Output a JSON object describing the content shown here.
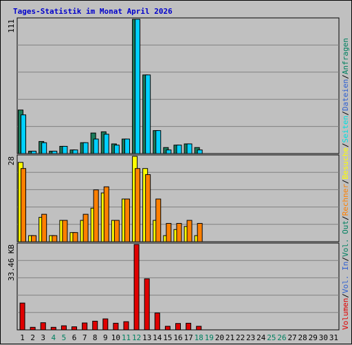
{
  "title": "Tages-Statistik im Monat April 2026",
  "colors": {
    "background": "#c0c0c0",
    "plot_bg": "#c0c0c0",
    "grid": "#808080",
    "title": "#0000cc",
    "anfragen": "#008060",
    "dateien": "#00d0ff",
    "seiten": "#00e0e0",
    "besuche": "#ffff00",
    "rechner": "#ff8000",
    "vol_out": "#008060",
    "vol_in": "#3060d0",
    "volumen": "#e00000",
    "weekend": "#008060",
    "weekday": "#000000"
  },
  "right_legend": [
    {
      "text": "Volumen",
      "color": "#e00000"
    },
    {
      "text": "/",
      "color": "#000000"
    },
    {
      "text": "Vol. In",
      "color": "#3060d0"
    },
    {
      "text": "/",
      "color": "#000000"
    },
    {
      "text": "Vol. Out",
      "color": "#008060"
    },
    {
      "text": "/",
      "color": "#000000"
    },
    {
      "text": "Rechner",
      "color": "#ff8000"
    },
    {
      "text": "/",
      "color": "#000000"
    },
    {
      "text": "Besuche",
      "color": "#ffff00"
    },
    {
      "text": "/",
      "color": "#000000"
    },
    {
      "text": "Seiten",
      "color": "#00e0e0"
    },
    {
      "text": "/",
      "color": "#000000"
    },
    {
      "text": "Dateien",
      "color": "#3060d0"
    },
    {
      "text": "/",
      "color": "#000000"
    },
    {
      "text": "Anfragen",
      "color": "#008060"
    }
  ],
  "chart_data": [
    {
      "type": "bar",
      "panel": "hits",
      "ylabel": "111",
      "ylim": [
        0,
        111
      ],
      "categories": [
        "1",
        "2",
        "3",
        "4",
        "5",
        "6",
        "7",
        "8",
        "9",
        "10",
        "11",
        "12",
        "13",
        "14",
        "15",
        "16",
        "17",
        "18",
        "19",
        "20",
        "21",
        "22",
        "23",
        "24",
        "25",
        "26",
        "27",
        "28",
        "29",
        "30",
        "31"
      ],
      "series": [
        {
          "name": "Anfragen",
          "color": "#1b7a5a",
          "values": [
            36,
            2,
            10,
            2,
            6,
            3,
            9,
            17,
            18,
            8,
            12,
            111,
            65,
            19,
            5,
            7,
            8,
            5,
            0,
            0,
            0,
            0,
            0,
            0,
            0,
            0,
            0,
            0,
            0,
            0,
            0
          ]
        },
        {
          "name": "Dateien",
          "color": "#00d0ff",
          "values": [
            32,
            2,
            9,
            2,
            6,
            3,
            9,
            12,
            16,
            7,
            12,
            111,
            65,
            19,
            3,
            7,
            8,
            3,
            0,
            0,
            0,
            0,
            0,
            0,
            0,
            0,
            0,
            0,
            0,
            0,
            0
          ]
        }
      ]
    },
    {
      "type": "bar",
      "panel": "visits",
      "ylabel": "28",
      "ylim": [
        0,
        28
      ],
      "categories": [
        "1",
        "2",
        "3",
        "4",
        "5",
        "6",
        "7",
        "8",
        "9",
        "10",
        "11",
        "12",
        "13",
        "14",
        "15",
        "16",
        "17",
        "18",
        "19",
        "20",
        "21",
        "22",
        "23",
        "24",
        "25",
        "26",
        "27",
        "28",
        "29",
        "30",
        "31"
      ],
      "series": [
        {
          "name": "Besuche",
          "color": "#ffff00",
          "values": [
            26,
            2,
            8,
            2,
            7,
            3,
            7,
            11,
            16,
            7,
            14,
            28,
            24,
            7,
            2,
            4,
            5,
            2,
            0,
            0,
            0,
            0,
            0,
            0,
            0,
            0,
            0,
            0,
            0,
            0,
            0
          ]
        },
        {
          "name": "Rechner",
          "color": "#ff8000",
          "values": [
            24,
            2,
            9,
            2,
            7,
            3,
            9,
            17,
            18,
            7,
            14,
            24,
            22,
            14,
            6,
            6,
            7,
            6,
            0,
            0,
            0,
            0,
            0,
            0,
            0,
            0,
            0,
            0,
            0,
            0,
            0
          ]
        }
      ]
    },
    {
      "type": "bar",
      "panel": "volume",
      "ylabel": "33.46 KB",
      "ylim": [
        0,
        33.46
      ],
      "categories": [
        "1",
        "2",
        "3",
        "4",
        "5",
        "6",
        "7",
        "8",
        "9",
        "10",
        "11",
        "12",
        "13",
        "14",
        "15",
        "16",
        "17",
        "18",
        "19",
        "20",
        "21",
        "22",
        "23",
        "24",
        "25",
        "26",
        "27",
        "28",
        "29",
        "30",
        "31"
      ],
      "series": [
        {
          "name": "Volumen",
          "color": "#e00000",
          "values": [
            10.5,
            1.0,
            2.8,
            1.0,
            1.6,
            1.2,
            2.7,
            3.4,
            4.3,
            2.6,
            3.2,
            33.46,
            20.0,
            6.6,
            1.4,
            2.5,
            2.6,
            1.4,
            0,
            0,
            0,
            0,
            0,
            0,
            0,
            0,
            0,
            0,
            0,
            0,
            0
          ]
        }
      ]
    }
  ],
  "weekend_days": [
    4,
    5,
    11,
    12,
    18,
    19,
    25,
    26
  ]
}
